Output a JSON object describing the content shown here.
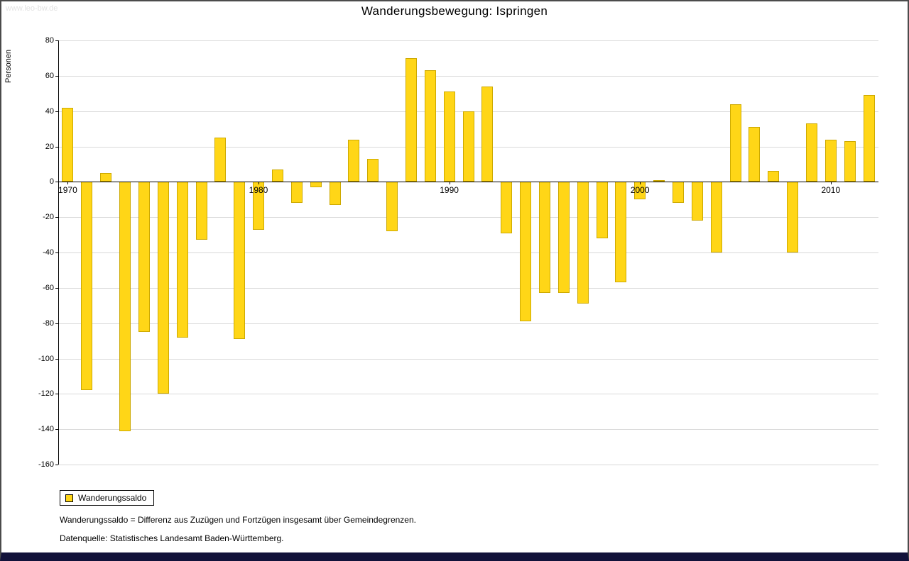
{
  "watermark": "www.leo-bw.de",
  "title": "Wanderungsbewegung: Ispringen",
  "legend": {
    "label": "Wanderungssaldo"
  },
  "footnotes": [
    "Wanderungssaldo = Differenz aus Zuzügen und Fortzügen insgesamt über Gemeindegrenzen.",
    "Datenquelle: Statistisches Landesamt Baden-Württemberg."
  ],
  "chart_data": {
    "type": "bar",
    "title": "Wanderungsbewegung: Ispringen",
    "xlabel": "",
    "ylabel": "Personen",
    "ylim": [
      -160,
      80
    ],
    "ytick_step": 20,
    "grid": true,
    "legend_position": "bottom-left",
    "bar_color": "#FFD617",
    "bar_border_color": "#CDA900",
    "xticks": [
      1970,
      1980,
      1990,
      2000,
      2010
    ],
    "categories": [
      1970,
      1971,
      1972,
      1973,
      1974,
      1975,
      1976,
      1977,
      1978,
      1979,
      1980,
      1981,
      1982,
      1983,
      1984,
      1985,
      1986,
      1987,
      1988,
      1989,
      1990,
      1991,
      1992,
      1993,
      1994,
      1995,
      1996,
      1997,
      1998,
      1999,
      2000,
      2001,
      2002,
      2003,
      2004,
      2005,
      2006,
      2007,
      2008,
      2009,
      2010,
      2011,
      2012
    ],
    "series": [
      {
        "name": "Wanderungssaldo",
        "values": [
          42,
          -118,
          5,
          -141,
          -85,
          -120,
          -88,
          -33,
          25,
          -89,
          -27,
          7,
          -12,
          -3,
          -13,
          24,
          13,
          -28,
          70,
          63,
          51,
          40,
          54,
          -29,
          -79,
          -63,
          -63,
          -69,
          -32,
          -57,
          -10,
          1,
          -12,
          -22,
          -40,
          44,
          31,
          6,
          -40,
          33,
          24,
          23,
          49
        ]
      }
    ]
  }
}
